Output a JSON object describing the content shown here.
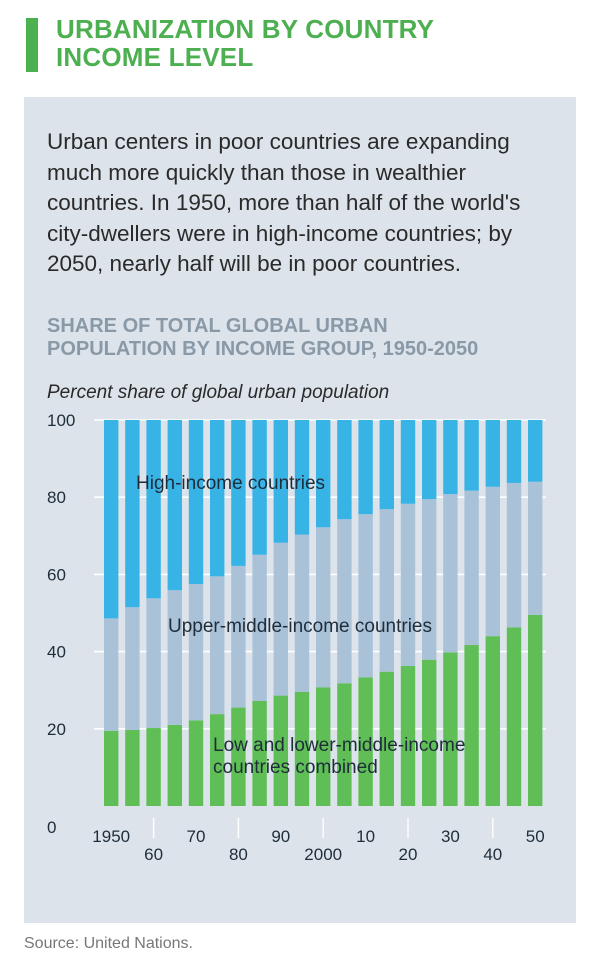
{
  "header": {
    "title_line1": "URBANIZATION BY COUNTRY",
    "title_line2": "INCOME LEVEL",
    "accent_color": "#4caf50"
  },
  "intro_text": "Urban centers in poor countries are expanding much more quickly than those in wealthier countries. In 1950, more than half of the world's city-dwellers were in high-income countries; by 2050, nearly half will be in poor countries.",
  "panel_color": "#dce3ea",
  "chart_title_line1": "SHARE OF TOTAL GLOBAL URBAN",
  "chart_title_line2": "POPULATION BY INCOME GROUP, 1950-2050",
  "chart_title_color": "#8a99a8",
  "unit_label": "Percent share of global urban population",
  "source": "Source: United Nations.",
  "chart_data": {
    "type": "bar",
    "stacked": true,
    "ylim": [
      0,
      100
    ],
    "y_ticks": [
      0,
      20,
      40,
      60,
      80,
      100
    ],
    "x": [
      1950,
      1955,
      1960,
      1965,
      1970,
      1975,
      1980,
      1985,
      1990,
      1995,
      2000,
      2005,
      2010,
      2015,
      2020,
      2025,
      2030,
      2035,
      2040,
      2045,
      2050
    ],
    "x_tick_labels": [
      {
        "label": "1950",
        "row": "upper"
      },
      {
        "label": "60",
        "row": "lower"
      },
      {
        "label": "70",
        "row": "upper"
      },
      {
        "label": "80",
        "row": "lower"
      },
      {
        "label": "90",
        "row": "upper"
      },
      {
        "label": "2000",
        "row": "lower"
      },
      {
        "label": "10",
        "row": "upper"
      },
      {
        "label": "20",
        "row": "lower"
      },
      {
        "label": "30",
        "row": "upper"
      },
      {
        "label": "40",
        "row": "lower"
      },
      {
        "label": "50",
        "row": "upper"
      }
    ],
    "series": [
      {
        "name": "Low and lower-middle-income countries combined",
        "color": "#5fbe55",
        "values": [
          19.5,
          19.7,
          20.2,
          21,
          22.2,
          23.8,
          25.5,
          27.2,
          28.6,
          29.6,
          30.7,
          31.8,
          33.3,
          34.8,
          36.3,
          37.9,
          39.8,
          41.7,
          44,
          46.3,
          49.5
        ]
      },
      {
        "name": "Upper-middle-income countries",
        "color": "#a9c2d8",
        "values": [
          29.1,
          31.8,
          33.6,
          34.9,
          35.3,
          35.7,
          36.7,
          37.9,
          39.6,
          40.7,
          41.5,
          42.5,
          42.3,
          42.1,
          42,
          41.6,
          41,
          40,
          38.7,
          37.4,
          34.5
        ]
      },
      {
        "name": "High-income countries",
        "color": "#38b3e6",
        "values": [
          51.4,
          48.5,
          46.2,
          44.1,
          42.5,
          40.5,
          37.8,
          34.9,
          31.8,
          29.7,
          27.8,
          25.7,
          24.4,
          23.1,
          21.7,
          20.5,
          19.2,
          18.3,
          17.3,
          16.3,
          16
        ]
      }
    ]
  }
}
